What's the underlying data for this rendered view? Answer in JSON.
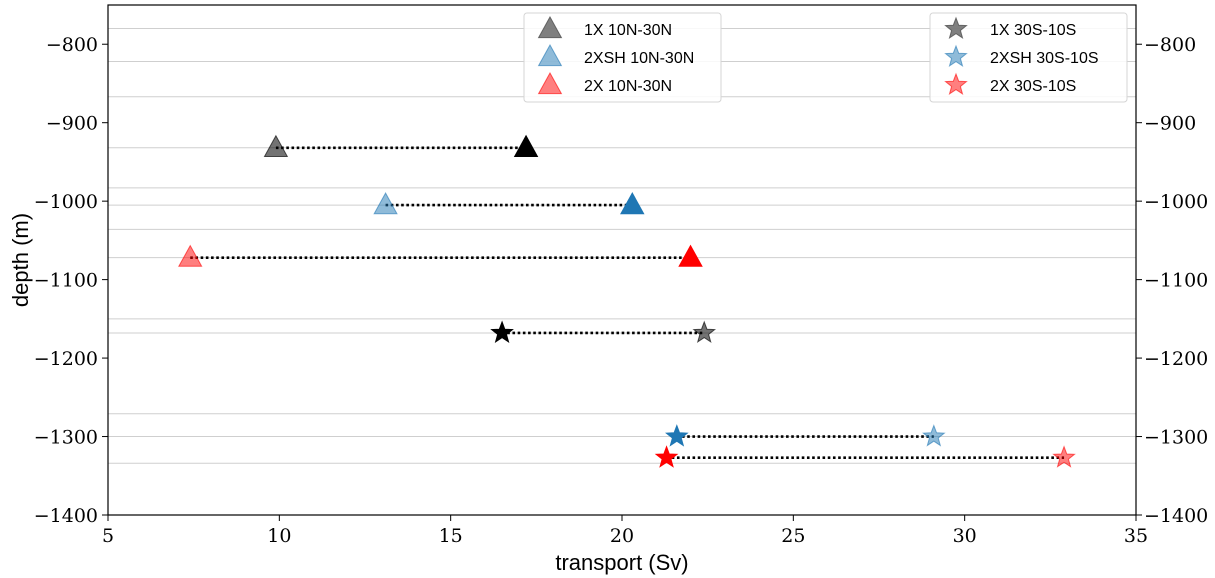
{
  "chart_data": {
    "type": "scatter",
    "xlabel": "transport (Sv)",
    "ylabel": "depth (m)",
    "xlim": [
      5,
      35
    ],
    "ylim": [
      -1400,
      -750
    ],
    "xticks": [
      5,
      10,
      15,
      20,
      25,
      30,
      35
    ],
    "xtick_labels": [
      "5",
      "10",
      "15",
      "20",
      "25",
      "30",
      "35"
    ],
    "yticks": [
      -800,
      -900,
      -1000,
      -1100,
      -1200,
      -1300,
      -1400
    ],
    "ytick_labels": [
      "−800",
      "−900",
      "−1000",
      "−1100",
      "−1200",
      "−1300",
      "−1400"
    ],
    "grid": "horizontal lines at each plotted depth",
    "gridlines_y": [
      -780,
      -822,
      -867,
      -932,
      -983,
      -1005,
      -1036,
      -1072,
      -1150,
      -1168,
      -1271,
      -1300,
      -1334
    ],
    "legends": [
      {
        "placement": "upper-center",
        "entries": [
          {
            "label": "1X 10N-30N",
            "marker": "triangle",
            "color": "#555555",
            "alpha": 0.75
          },
          {
            "label": "2XSH 10N-30N",
            "marker": "triangle",
            "color": "#1f77b4",
            "alpha": 0.5
          },
          {
            "label": "2X 10N-30N",
            "marker": "triangle",
            "color": "#ff0000",
            "alpha": 0.5
          }
        ]
      },
      {
        "placement": "upper-right",
        "entries": [
          {
            "label": "1X 30S-10S",
            "marker": "star",
            "color": "#555555",
            "alpha": 0.75
          },
          {
            "label": "2XSH 30S-10S",
            "marker": "star",
            "color": "#1f77b4",
            "alpha": 0.5
          },
          {
            "label": "2X 30S-10S",
            "marker": "star",
            "color": "#ff0000",
            "alpha": 0.5
          }
        ]
      }
    ],
    "series": [
      {
        "marker": "triangle",
        "color": "#000000",
        "points": [
          {
            "x": 9.9,
            "y": -932,
            "alpha": 0.55
          },
          {
            "x": 17.2,
            "y": -932,
            "alpha": 1.0
          }
        ]
      },
      {
        "marker": "triangle",
        "color": "#1f77b4",
        "points": [
          {
            "x": 13.1,
            "y": -1005,
            "alpha": 0.5
          },
          {
            "x": 20.3,
            "y": -1005,
            "alpha": 1.0
          }
        ]
      },
      {
        "marker": "triangle",
        "color": "#ff0000",
        "points": [
          {
            "x": 7.4,
            "y": -1072,
            "alpha": 0.5
          },
          {
            "x": 22.0,
            "y": -1072,
            "alpha": 1.0
          }
        ]
      },
      {
        "marker": "star",
        "color": "#000000",
        "points": [
          {
            "x": 16.5,
            "y": -1168,
            "alpha": 1.0
          },
          {
            "x": 22.4,
            "y": -1168,
            "alpha": 0.55
          }
        ]
      },
      {
        "marker": "star",
        "color": "#1f77b4",
        "points": [
          {
            "x": 21.6,
            "y": -1300,
            "alpha": 1.0
          },
          {
            "x": 29.1,
            "y": -1300,
            "alpha": 0.5
          }
        ]
      },
      {
        "marker": "star",
        "color": "#ff0000",
        "points": [
          {
            "x": 21.3,
            "y": -1327,
            "alpha": 1.0
          },
          {
            "x": 32.9,
            "y": -1327,
            "alpha": 0.5
          }
        ]
      }
    ]
  }
}
